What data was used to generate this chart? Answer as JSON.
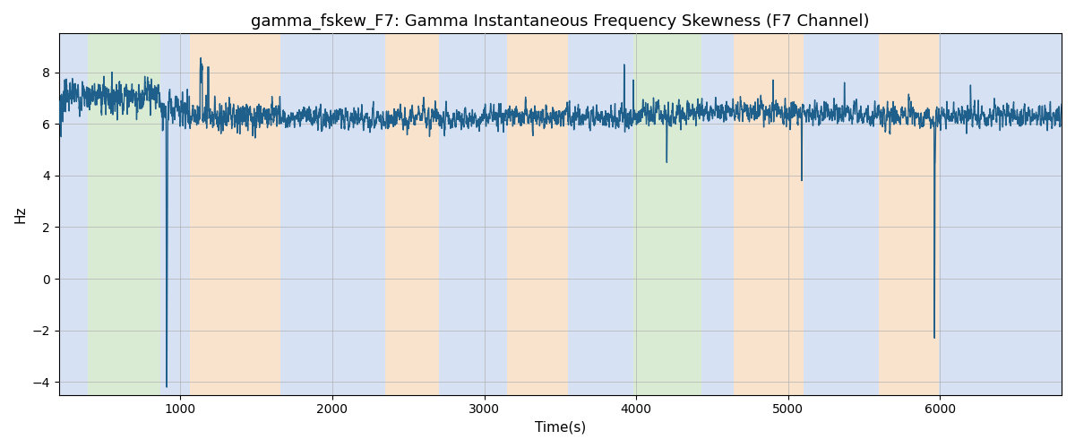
{
  "title": "gamma_fskew_F7: Gamma Instantaneous Frequency Skewness (F7 Channel)",
  "xlabel": "Time(s)",
  "ylabel": "Hz",
  "ylim": [
    -4.5,
    9.5
  ],
  "xlim": [
    200,
    6800
  ],
  "yticks": [
    -4,
    -2,
    0,
    2,
    4,
    6,
    8
  ],
  "xticks": [
    1000,
    2000,
    3000,
    4000,
    5000,
    6000
  ],
  "line_color": "#1f5f8b",
  "line_width": 1.0,
  "bg_regions": [
    {
      "xmin": 200,
      "xmax": 390,
      "color": "#aec6e8",
      "alpha": 0.5
    },
    {
      "xmin": 390,
      "xmax": 870,
      "color": "#b5d9a8",
      "alpha": 0.5
    },
    {
      "xmin": 870,
      "xmax": 1060,
      "color": "#aec6e8",
      "alpha": 0.5
    },
    {
      "xmin": 1060,
      "xmax": 1660,
      "color": "#f5c89a",
      "alpha": 0.5
    },
    {
      "xmin": 1660,
      "xmax": 2350,
      "color": "#aec6e8",
      "alpha": 0.5
    },
    {
      "xmin": 2350,
      "xmax": 2700,
      "color": "#f5c89a",
      "alpha": 0.5
    },
    {
      "xmin": 2700,
      "xmax": 3150,
      "color": "#aec6e8",
      "alpha": 0.5
    },
    {
      "xmin": 3150,
      "xmax": 3550,
      "color": "#f5c89a",
      "alpha": 0.5
    },
    {
      "xmin": 3550,
      "xmax": 3980,
      "color": "#aec6e8",
      "alpha": 0.5
    },
    {
      "xmin": 3980,
      "xmax": 4430,
      "color": "#b5d9a8",
      "alpha": 0.5
    },
    {
      "xmin": 4430,
      "xmax": 4640,
      "color": "#aec6e8",
      "alpha": 0.5
    },
    {
      "xmin": 4640,
      "xmax": 5100,
      "color": "#f5c89a",
      "alpha": 0.5
    },
    {
      "xmin": 5100,
      "xmax": 5600,
      "color": "#aec6e8",
      "alpha": 0.5
    },
    {
      "xmin": 5600,
      "xmax": 5990,
      "color": "#f5c89a",
      "alpha": 0.5
    },
    {
      "xmin": 5990,
      "xmax": 6800,
      "color": "#aec6e8",
      "alpha": 0.5
    }
  ],
  "figsize": [
    12,
    5
  ],
  "dpi": 100,
  "grid_color": "#b0b0b0",
  "grid_alpha": 0.7,
  "title_fontsize": 13
}
